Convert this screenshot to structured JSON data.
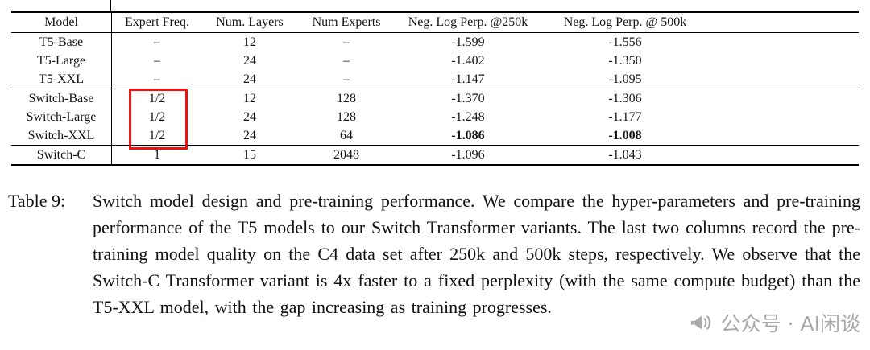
{
  "table": {
    "headers": [
      "Model",
      "Expert Freq.",
      "Num. Layers",
      "Num Experts",
      "Neg. Log Perp. @250k",
      "Neg. Log Perp. @ 500k"
    ],
    "groups": [
      {
        "rows": [
          {
            "cells": [
              "T5-Base",
              "–",
              "12",
              "–",
              "-1.599",
              "-1.556"
            ],
            "bold": []
          },
          {
            "cells": [
              "T5-Large",
              "–",
              "24",
              "–",
              "-1.402",
              "-1.350"
            ],
            "bold": []
          },
          {
            "cells": [
              "T5-XXL",
              "–",
              "24",
              "–",
              "-1.147",
              "-1.095"
            ],
            "bold": []
          }
        ]
      },
      {
        "rows": [
          {
            "cells": [
              "Switch-Base",
              "1/2",
              "12",
              "128",
              "-1.370",
              "-1.306"
            ],
            "bold": []
          },
          {
            "cells": [
              "Switch-Large",
              "1/2",
              "24",
              "128",
              "-1.248",
              "-1.177"
            ],
            "bold": []
          },
          {
            "cells": [
              "Switch-XXL",
              "1/2",
              "24",
              "64",
              "-1.086",
              "-1.008"
            ],
            "bold": [
              4,
              5
            ]
          }
        ]
      },
      {
        "rows": [
          {
            "cells": [
              "Switch-C",
              "1",
              "15",
              "2048",
              "-1.096",
              "-1.043"
            ],
            "bold": []
          }
        ]
      }
    ],
    "highlight_color": "#ee1111"
  },
  "caption": {
    "label": "Table 9:",
    "text": "Switch model design and pre-training performance.  We compare the hyper-parameters and pre-training performance of the T5 models to our Switch Transformer variants.  The last two columns record the pre-training model quality on the C4 data set after 250k and 500k steps, respectively.  We observe that the Switch-C Transformer variant is 4x faster to a fixed perplexity (with the same compute budget) than the T5-XXL model, with the gap increasing as training progresses."
  },
  "watermark": {
    "icon": "megaphone-icon",
    "text": "公众号 · AI闲谈"
  }
}
